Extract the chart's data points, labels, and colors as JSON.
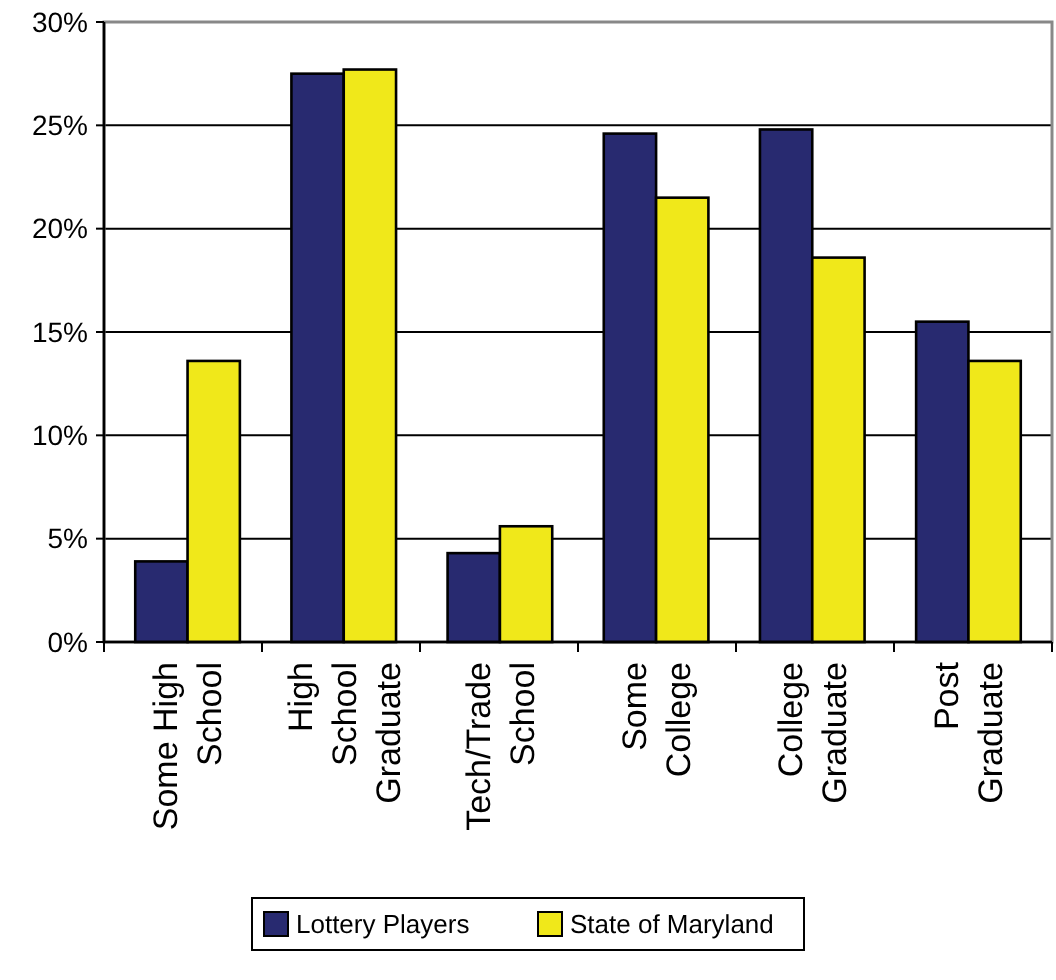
{
  "chart_data": {
    "type": "bar",
    "categories": [
      "Some High\nSchool",
      "High\nSchool\nGraduate",
      "Tech/Trade\nSchool",
      "Some\nCollege",
      "College\nGraduate",
      "Post\nGraduate"
    ],
    "series": [
      {
        "name": "Lottery Players",
        "color": "#282a70",
        "values": [
          3.9,
          27.5,
          4.3,
          24.6,
          24.8,
          15.5
        ]
      },
      {
        "name": "State of Maryland",
        "color": "#f0e81a",
        "values": [
          13.6,
          27.7,
          5.6,
          21.5,
          18.6,
          13.6
        ]
      }
    ],
    "ylim": [
      0,
      30
    ],
    "yticks": [
      {
        "value": 0,
        "label": "0%"
      },
      {
        "value": 5,
        "label": "5%"
      },
      {
        "value": 10,
        "label": "10%"
      },
      {
        "value": 15,
        "label": "15%"
      },
      {
        "value": 20,
        "label": "20%"
      },
      {
        "value": 25,
        "label": "25%"
      },
      {
        "value": 30,
        "label": "30%"
      }
    ],
    "grid": "y",
    "legend": "bottom"
  }
}
